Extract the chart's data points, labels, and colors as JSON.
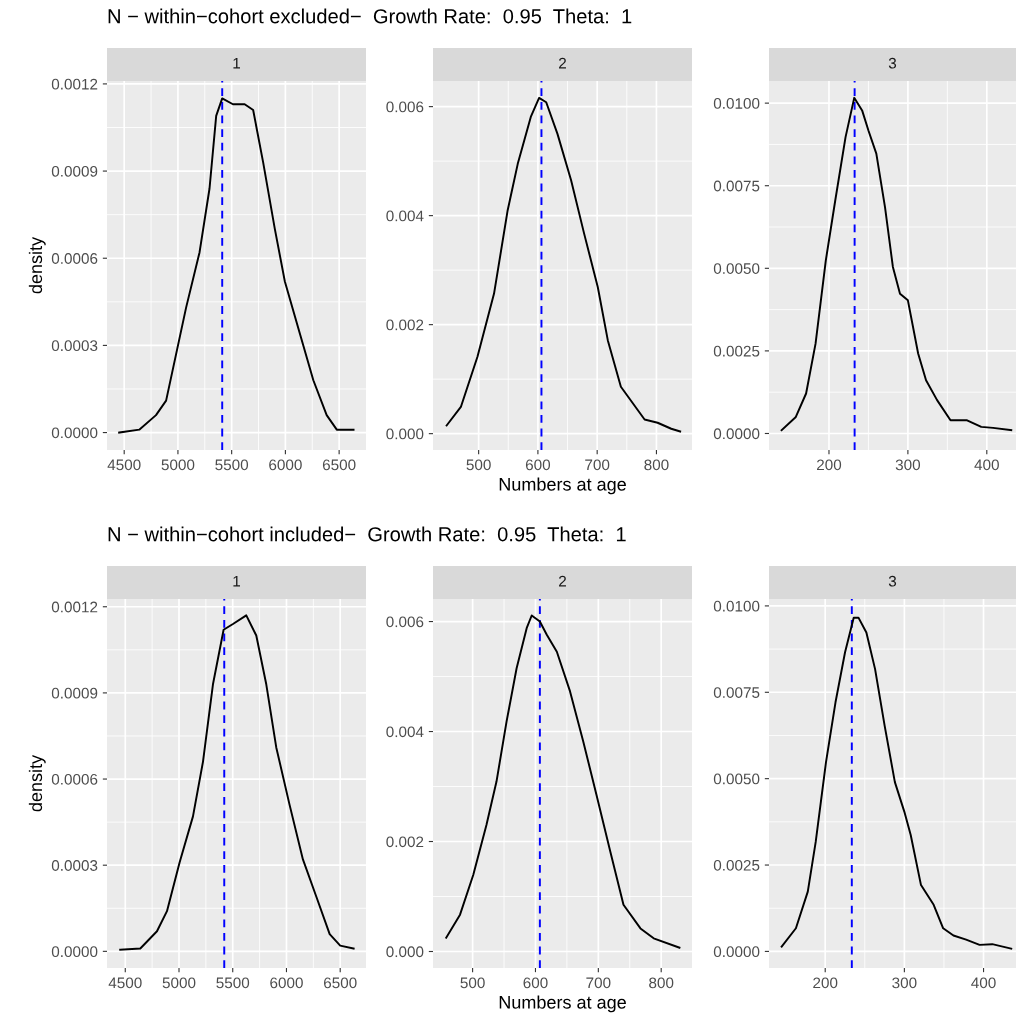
{
  "chart_data": [
    {
      "type": "line",
      "title": "N − within−cohort excluded−  Growth Rate:  0.95  Theta:  1",
      "subtitle": "1",
      "ylabel": "density",
      "grid": true,
      "x": [
        4453,
        4640,
        4796,
        4890,
        4983,
        5076,
        5201,
        5294,
        5356,
        5412,
        5512,
        5621,
        5700,
        5793,
        5902,
        5995,
        6135,
        6260,
        6384,
        6478,
        6634
      ],
      "series": [
        {
          "color": "#000000",
          "values": [
            0.0,
            1e-05,
            6e-05,
            0.00011,
            0.00027,
            0.00043,
            0.00062,
            0.00084,
            0.00109,
            0.00115,
            0.00113,
            0.00113,
            0.00111,
            0.00093,
            0.0007,
            0.00052,
            0.00034,
            0.00018,
            6e-05,
            1e-05,
            1e-05
          ]
        }
      ],
      "xlim": [
        4340,
        6750
      ],
      "ylim": [
        -6e-05,
        0.00121
      ],
      "xticks": [
        4500,
        5000,
        5500,
        6000,
        6500
      ],
      "yticks": [
        {
          "value": 0,
          "label": "0.0000"
        },
        {
          "value": 0.0003,
          "label": "0.0003"
        },
        {
          "value": 0.0006,
          "label": "0.0006"
        },
        {
          "value": 0.0009,
          "label": "0.0009"
        },
        {
          "value": 0.0012,
          "label": "0.0012"
        }
      ],
      "ref_lines": [
        {
          "axis": "x",
          "value": 5412,
          "color": "#0000ff",
          "line_style": "dashed"
        }
      ]
    },
    {
      "type": "line",
      "subtitle": "2",
      "xlabel": "Numbers at age",
      "grid": true,
      "x": [
        446,
        470,
        498,
        526,
        549,
        566,
        588,
        602,
        614,
        633,
        656,
        678,
        701,
        718,
        740,
        780,
        802,
        825,
        840
      ],
      "series": [
        {
          "color": "#000000",
          "values": [
            0.00015,
            0.00049,
            0.00141,
            0.00257,
            0.0041,
            0.00495,
            0.00581,
            0.00616,
            0.00608,
            0.0055,
            0.00465,
            0.00367,
            0.00269,
            0.00171,
            0.00086,
            0.00026,
            0.0002,
            9e-05,
            4e-05
          ]
        }
      ],
      "xlim": [
        423,
        860
      ],
      "ylim": [
        -0.0003,
        0.00647
      ],
      "xticks": [
        500,
        600,
        700,
        800
      ],
      "yticks": [
        {
          "value": 0,
          "label": "0.000"
        },
        {
          "value": 0.002,
          "label": "0.002"
        },
        {
          "value": 0.004,
          "label": "0.004"
        },
        {
          "value": 0.006,
          "label": "0.006"
        }
      ],
      "ref_lines": [
        {
          "axis": "x",
          "value": 606,
          "color": "#0000ff",
          "line_style": "dashed"
        }
      ]
    },
    {
      "type": "line",
      "subtitle": "3",
      "grid": true,
      "x": [
        140,
        158,
        171,
        183,
        196,
        208,
        221,
        232,
        242,
        250,
        260,
        271,
        281,
        290,
        300,
        313,
        323,
        337,
        354,
        375,
        393,
        408,
        431
      ],
      "series": [
        {
          "color": "#000000",
          "values": [
            0.0001,
            0.0005,
            0.00121,
            0.00272,
            0.00524,
            0.00706,
            0.00897,
            0.01016,
            0.00978,
            0.00917,
            0.00847,
            0.00685,
            0.00504,
            0.00423,
            0.00403,
            0.00242,
            0.00161,
            0.00101,
            0.0004,
            0.0004,
            0.0002,
            0.00017,
            0.0001
          ]
        }
      ],
      "xlim": [
        124,
        437
      ],
      "ylim": [
        -0.0005,
        0.01067
      ],
      "xticks": [
        200,
        300,
        400
      ],
      "yticks": [
        {
          "value": 0,
          "label": "0.0000"
        },
        {
          "value": 0.0025,
          "label": "0.0025"
        },
        {
          "value": 0.005,
          "label": "0.0050"
        },
        {
          "value": 0.0075,
          "label": "0.0075"
        },
        {
          "value": 0.01,
          "label": "0.0100"
        }
      ],
      "ref_lines": [
        {
          "axis": "x",
          "value": 232.5,
          "color": "#0000ff",
          "line_style": "dashed"
        }
      ]
    },
    {
      "type": "line",
      "title": "N − within−cohort included−  Growth Rate:  0.95  Theta:  1",
      "subtitle": "1",
      "ylabel": "density",
      "grid": true,
      "x": [
        4453,
        4640,
        4795,
        4888,
        5006,
        5130,
        5223,
        5316,
        5415,
        5502,
        5626,
        5719,
        5812,
        5905,
        6029,
        6153,
        6278,
        6402,
        6500,
        6625
      ],
      "series": [
        {
          "color": "#000000",
          "values": [
            6e-06,
            1e-05,
            7e-05,
            0.00014,
            0.00031,
            0.00047,
            0.00066,
            0.00093,
            0.00112,
            0.00114,
            0.00117,
            0.0011,
            0.00093,
            0.00071,
            0.00051,
            0.00032,
            0.00019,
            6e-05,
            2e-05,
            1e-05
          ]
        }
      ],
      "xlim": [
        4330,
        6740
      ],
      "ylim": [
        -5.8e-05,
        0.001227
      ],
      "xticks": [
        4500,
        5000,
        5500,
        6000,
        6500
      ],
      "yticks": [
        {
          "value": 0,
          "label": "0.0000"
        },
        {
          "value": 0.0003,
          "label": "0.0003"
        },
        {
          "value": 0.0006,
          "label": "0.0006"
        },
        {
          "value": 0.0009,
          "label": "0.0009"
        },
        {
          "value": 0.0012,
          "label": "0.0012"
        }
      ],
      "ref_lines": [
        {
          "axis": "x",
          "value": 5421,
          "color": "#0000ff",
          "line_style": "dashed"
        }
      ]
    },
    {
      "type": "line",
      "subtitle": "2",
      "xlabel": "Numbers at age",
      "grid": true,
      "x": [
        458,
        480,
        501,
        522,
        538,
        554,
        570,
        586,
        594,
        607,
        618,
        634,
        655,
        676,
        697,
        719,
        740,
        767,
        788,
        829
      ],
      "series": [
        {
          "color": "#000000",
          "values": [
            0.00025,
            0.00067,
            0.00139,
            0.0023,
            0.00309,
            0.00418,
            0.00515,
            0.00588,
            0.00611,
            0.006,
            0.00576,
            0.00545,
            0.00473,
            0.00382,
            0.00285,
            0.00182,
            0.00085,
            0.00042,
            0.00024,
            7e-05
          ]
        }
      ],
      "xlim": [
        437,
        849
      ],
      "ylim": [
        -0.0003,
        0.00641
      ],
      "xticks": [
        500,
        600,
        700,
        800
      ],
      "yticks": [
        {
          "value": 0,
          "label": "0.000"
        },
        {
          "value": 0.002,
          "label": "0.002"
        },
        {
          "value": 0.004,
          "label": "0.004"
        },
        {
          "value": 0.006,
          "label": "0.006"
        }
      ],
      "ref_lines": [
        {
          "axis": "x",
          "value": 607,
          "color": "#0000ff",
          "line_style": "dashed"
        }
      ]
    },
    {
      "type": "line",
      "subtitle": "3",
      "grid": true,
      "x": [
        145,
        163,
        178,
        188,
        201,
        213,
        225,
        236,
        242,
        252,
        263,
        275,
        288,
        300,
        308,
        321,
        337,
        349,
        362,
        378,
        395,
        411,
        435
      ],
      "series": [
        {
          "color": "#000000",
          "values": [
            0.00014,
            0.00067,
            0.00173,
            0.00317,
            0.00548,
            0.00721,
            0.00865,
            0.00966,
            0.00966,
            0.00923,
            0.00817,
            0.00654,
            0.0049,
            0.00404,
            0.00337,
            0.00192,
            0.00135,
            0.00067,
            0.00046,
            0.00034,
            0.00019,
            0.00021,
            8e-05
          ]
        }
      ],
      "xlim": [
        129,
        441
      ],
      "ylim": [
        -0.00048,
        0.0102
      ],
      "xticks": [
        200,
        300,
        400
      ],
      "yticks": [
        {
          "value": 0,
          "label": "0.0000"
        },
        {
          "value": 0.0025,
          "label": "0.0025"
        },
        {
          "value": 0.005,
          "label": "0.0050"
        },
        {
          "value": 0.0075,
          "label": "0.0075"
        },
        {
          "value": 0.01,
          "label": "0.0100"
        }
      ],
      "ref_lines": [
        {
          "axis": "x",
          "value": 233.6,
          "color": "#0000ff",
          "line_style": "dashed"
        }
      ]
    }
  ]
}
